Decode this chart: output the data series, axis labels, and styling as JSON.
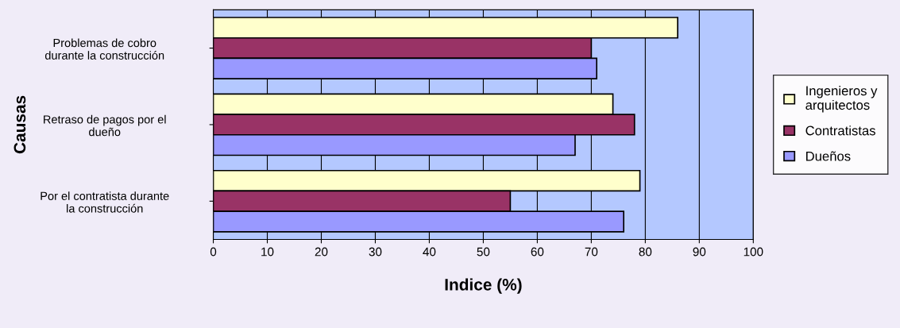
{
  "chart_data": {
    "type": "bar",
    "orientation": "horizontal",
    "categories": [
      "Problemas de cobro\ndurante la construcción",
      "Retraso de pagos por el\ndueño",
      "Por el contratista durante\nla construcción"
    ],
    "series": [
      {
        "name": "Ingenieros y\narquitectos",
        "color": "#ffffcc",
        "values": [
          86,
          74,
          79
        ]
      },
      {
        "name": "Contratistas",
        "color": "#993366",
        "values": [
          70,
          78,
          55
        ]
      },
      {
        "name": "Dueños",
        "color": "#9999ff",
        "values": [
          71,
          67,
          76
        ]
      }
    ],
    "xlabel": "Indice (%)",
    "ylabel": "Causas",
    "xlim": [
      0,
      100
    ],
    "xticks": [
      0,
      10,
      20,
      30,
      40,
      50,
      60,
      70,
      80,
      90,
      100
    ],
    "grid": "x",
    "legend": "right"
  }
}
